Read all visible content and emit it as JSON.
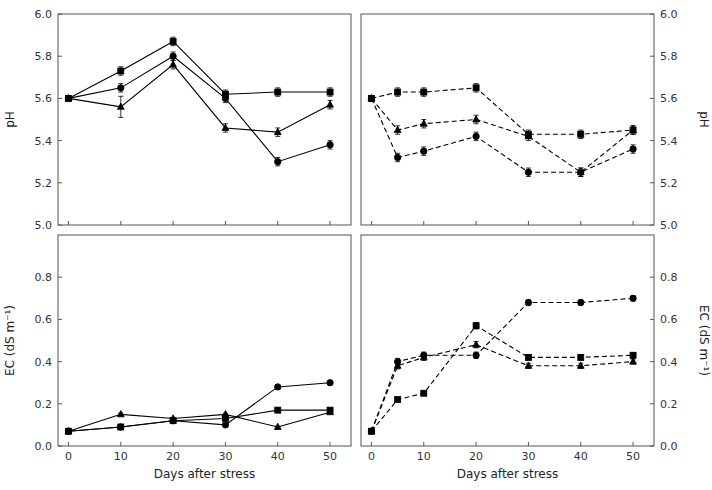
{
  "chart_data": [
    {
      "type": "line",
      "color": "#000000",
      "ylabel": "pH",
      "x": [
        0,
        10,
        20,
        30,
        40,
        50
      ],
      "xlim": [
        -2,
        54
      ],
      "xticks": [
        0,
        10,
        20,
        30,
        40,
        50
      ],
      "ylim": [
        5.0,
        6.0
      ],
      "yticks": [
        {
          "value": 5.0,
          "label": "5.0"
        },
        5.2,
        5.4,
        5.6,
        5.8,
        {
          "value": 6.0,
          "label": "6.0"
        }
      ],
      "tick_labels": "y",
      "series": [
        {
          "marker": "square",
          "line_style": "solid",
          "values": [
            5.6,
            5.73,
            5.87,
            5.62,
            5.63,
            5.63
          ],
          "errors": [
            0.01,
            0.02,
            0.02,
            0.02,
            0.02,
            0.02
          ]
        },
        {
          "marker": "triangle",
          "line_style": "solid",
          "values": [
            5.6,
            5.56,
            5.76,
            5.46,
            5.44,
            5.57
          ],
          "errors": [
            0.01,
            0.05,
            0.02,
            0.02,
            0.02,
            0.02
          ]
        },
        {
          "marker": "circle",
          "line_style": "solid",
          "values": [
            5.6,
            5.65,
            5.8,
            5.6,
            5.3,
            5.38
          ],
          "errors": [
            0.01,
            0.02,
            0.02,
            0.02,
            0.02,
            0.02
          ]
        }
      ]
    },
    {
      "type": "line",
      "color": "#000000",
      "ylabel": "pH",
      "x": [
        0,
        5,
        10,
        20,
        30,
        40,
        50
      ],
      "xlim": [
        -2,
        54
      ],
      "xticks": [
        0,
        10,
        20,
        30,
        40,
        50
      ],
      "ylim": [
        5.0,
        6.0
      ],
      "yticks": [
        {
          "value": 5.0,
          "label": "5.0"
        },
        5.2,
        5.4,
        5.6,
        5.8,
        {
          "value": 6.0,
          "label": "6.0"
        }
      ],
      "tick_labels": "y",
      "series": [
        {
          "marker": "square",
          "line_style": "dashed",
          "values": [
            5.6,
            5.63,
            5.63,
            5.65,
            5.43,
            5.43,
            5.45
          ],
          "errors": [
            0.01,
            0.02,
            0.02,
            0.02,
            0.02,
            0.02,
            0.02
          ]
        },
        {
          "marker": "triangle",
          "line_style": "dashed",
          "values": [
            5.6,
            5.45,
            5.48,
            5.5,
            5.42,
            5.25,
            5.45
          ],
          "errors": [
            0.01,
            0.02,
            0.02,
            0.02,
            0.02,
            0.02,
            0.02
          ]
        },
        {
          "marker": "circle",
          "line_style": "dashed",
          "values": [
            5.6,
            5.32,
            5.35,
            5.42,
            5.25,
            5.25,
            5.36
          ],
          "errors": [
            0.01,
            0.02,
            0.02,
            0.02,
            0.02,
            0.02,
            0.02
          ]
        }
      ]
    },
    {
      "type": "line",
      "color": "#000000",
      "ylabel": "EC (dS m⁻¹)",
      "xlabel": "Days after stress",
      "x": [
        0,
        10,
        20,
        30,
        40,
        50
      ],
      "xlim": [
        -2,
        54
      ],
      "xticks": [
        0,
        10,
        20,
        30,
        40,
        50
      ],
      "ylim": [
        0.0,
        1.0
      ],
      "yticks": [
        {
          "value": 0.0,
          "label": "0.0"
        },
        0.2,
        0.4,
        0.6,
        0.8
      ],
      "series": [
        {
          "marker": "square",
          "line_style": "solid",
          "values": [
            0.07,
            0.09,
            0.12,
            0.13,
            0.17,
            0.17
          ],
          "errors": [
            0.003,
            0.004,
            0.004,
            0.004,
            0.005,
            0.005
          ]
        },
        {
          "marker": "triangle",
          "line_style": "solid",
          "values": [
            0.07,
            0.15,
            0.13,
            0.15,
            0.09,
            0.16
          ],
          "errors": [
            0.003,
            0.006,
            0.005,
            0.005,
            0.004,
            0.005
          ]
        },
        {
          "marker": "circle",
          "line_style": "solid",
          "values": [
            0.07,
            0.09,
            0.12,
            0.1,
            0.28,
            0.3
          ],
          "errors": [
            0.003,
            0.004,
            0.005,
            0.005,
            0.008,
            0.006
          ]
        }
      ]
    },
    {
      "type": "line",
      "color": "#000000",
      "ylabel": "EC (dS m⁻¹)",
      "xlabel": "Days after stress",
      "x": [
        0,
        5,
        10,
        20,
        30,
        40,
        50
      ],
      "xlim": [
        -2,
        54
      ],
      "xticks": [
        0,
        10,
        20,
        30,
        40,
        50
      ],
      "ylim": [
        0.0,
        1.0
      ],
      "yticks": [
        {
          "value": 0.0,
          "label": "0.0"
        },
        0.2,
        0.4,
        0.6,
        0.8
      ],
      "series": [
        {
          "marker": "square",
          "line_style": "dashed",
          "values": [
            0.07,
            0.22,
            0.25,
            0.57,
            0.42,
            0.42,
            0.43
          ],
          "errors": [
            0.003,
            0.008,
            0.008,
            0.015,
            0.012,
            0.012,
            0.012
          ]
        },
        {
          "marker": "triangle",
          "line_style": "dashed",
          "values": [
            0.07,
            0.38,
            0.42,
            0.48,
            0.38,
            0.38,
            0.4
          ],
          "errors": [
            0.003,
            0.015,
            0.015,
            0.015,
            0.012,
            0.012,
            0.012
          ]
        },
        {
          "marker": "circle",
          "line_style": "dashed",
          "values": [
            0.07,
            0.4,
            0.43,
            0.43,
            0.68,
            0.68,
            0.7
          ],
          "errors": [
            0.003,
            0.015,
            0.015,
            0.015,
            0.012,
            0.012,
            0.012
          ]
        }
      ]
    }
  ]
}
